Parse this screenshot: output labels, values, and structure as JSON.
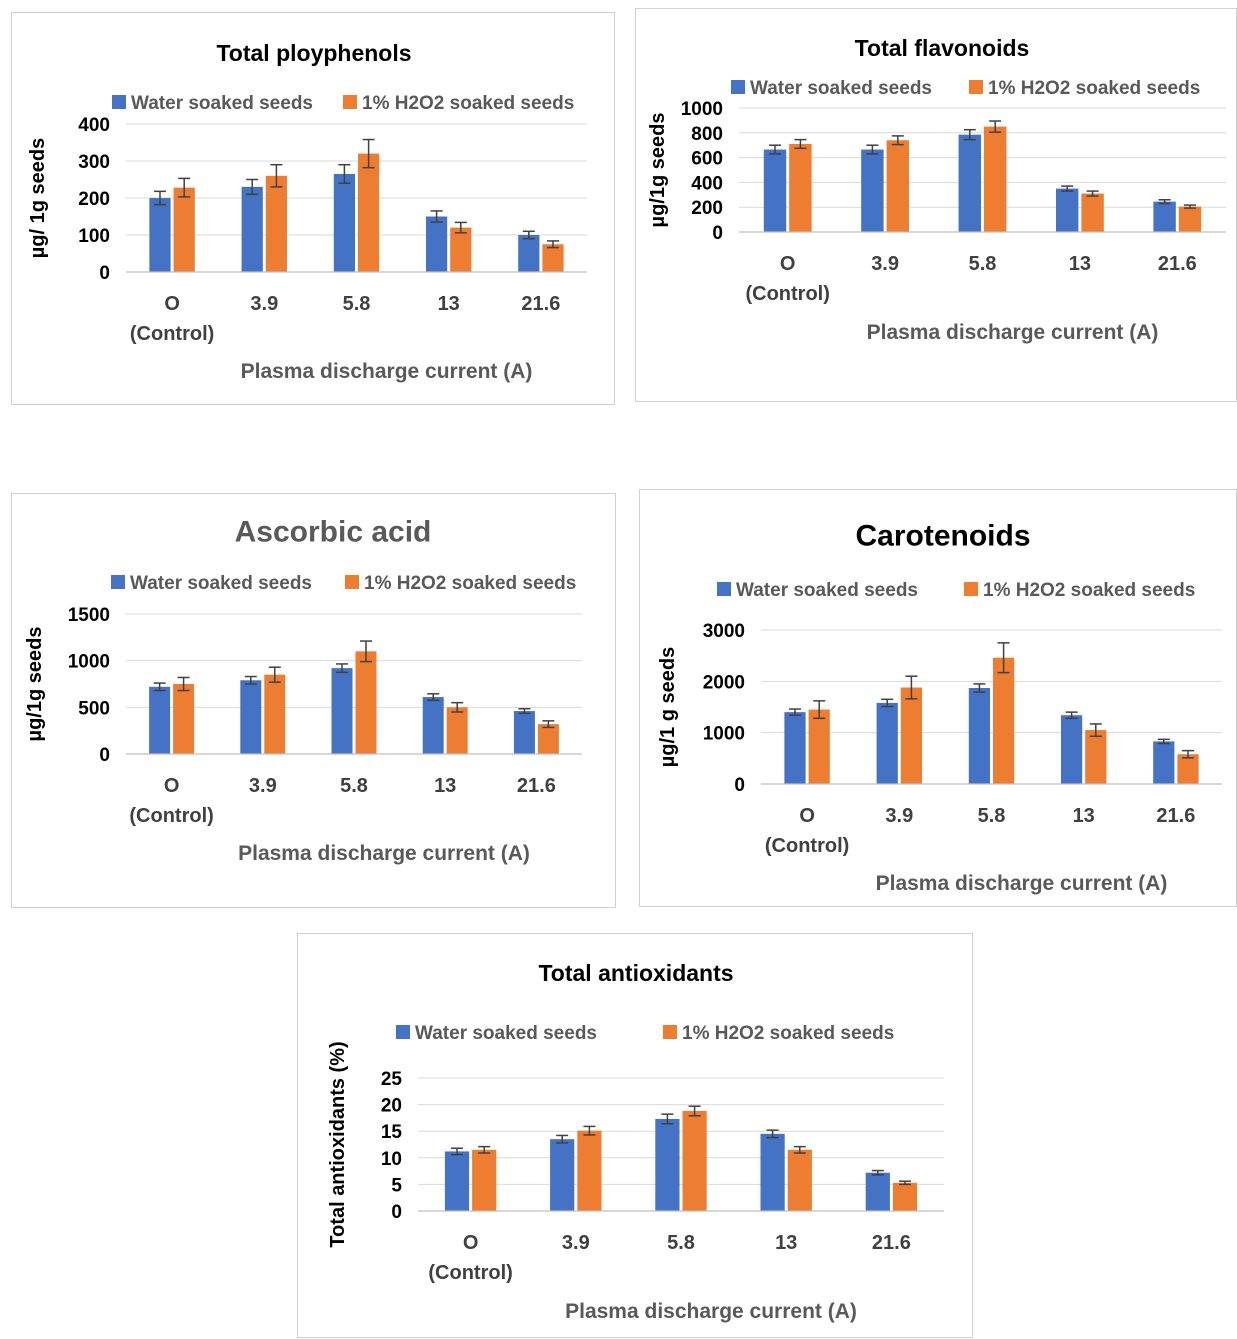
{
  "chart_data": [
    {
      "type": "bar",
      "title": "Total ployphenols",
      "xlabel": "Plasma discharge current (A)",
      "ylabel": "µg/ 1g seeds",
      "categories": [
        "O\n(Control)",
        "3.9",
        "5.8",
        "13",
        "21.6"
      ],
      "series": [
        {
          "name": "Water soaked seeds",
          "color": "#4472C4",
          "values": [
            200,
            230,
            265,
            150,
            100
          ],
          "errors": [
            18,
            20,
            25,
            15,
            10
          ]
        },
        {
          "name": "1% H2O2 soaked seeds",
          "color": "#ED7D31",
          "values": [
            228,
            260,
            320,
            120,
            75
          ],
          "errors": [
            25,
            30,
            38,
            14,
            9
          ]
        }
      ],
      "ylim": [
        0,
        400
      ],
      "yticks": [
        0,
        100,
        200,
        300,
        400
      ],
      "grid": true,
      "legend": "top"
    },
    {
      "type": "bar",
      "title": "Total flavonoids",
      "xlabel": "Plasma  discharge current (A)",
      "ylabel": "µg/1g seeds",
      "categories": [
        "O\n(Control)",
        "3.9",
        "5.8",
        "13",
        "21.6"
      ],
      "series": [
        {
          "name": "Water soaked seeds",
          "color": "#4472C4",
          "values": [
            665,
            665,
            785,
            350,
            245
          ],
          "errors": [
            35,
            35,
            40,
            20,
            15
          ]
        },
        {
          "name": "1% H2O2 soaked seeds",
          "color": "#ED7D31",
          "values": [
            710,
            740,
            850,
            310,
            205
          ],
          "errors": [
            35,
            35,
            45,
            20,
            12
          ]
        }
      ],
      "ylim": [
        0,
        1000
      ],
      "yticks": [
        0,
        200,
        400,
        600,
        800,
        1000
      ],
      "grid": true,
      "legend": "top"
    },
    {
      "type": "bar",
      "title": "Ascorbic acid",
      "xlabel": "Plasma discharge current (A)",
      "ylabel": "µg/1g seeds",
      "categories": [
        "O\n(Control)",
        "3.9",
        "5.8",
        "13",
        "21.6"
      ],
      "series": [
        {
          "name": "Water soaked seeds",
          "color": "#4472C4",
          "values": [
            720,
            790,
            920,
            610,
            460
          ],
          "errors": [
            40,
            40,
            45,
            35,
            25
          ]
        },
        {
          "name": "1% H2O2 soaked seeds",
          "color": "#ED7D31",
          "values": [
            750,
            850,
            1100,
            500,
            320
          ],
          "errors": [
            70,
            80,
            110,
            50,
            35
          ]
        }
      ],
      "ylim": [
        0,
        1500
      ],
      "yticks": [
        0,
        500,
        1000,
        1500
      ],
      "grid": true,
      "legend": "top"
    },
    {
      "type": "bar",
      "title": "Carotenoids",
      "xlabel": "Plasma discharge current (A)",
      "ylabel": "µg/1 g seeds",
      "categories": [
        "O\n(Control)",
        "3.9",
        "5.8",
        "13",
        "21.6"
      ],
      "series": [
        {
          "name": "Water soaked seeds",
          "color": "#4472C4",
          "values": [
            1400,
            1580,
            1870,
            1340,
            830
          ],
          "errors": [
            60,
            70,
            80,
            60,
            40
          ]
        },
        {
          "name": "1% H2O2 soaked seeds",
          "color": "#ED7D31",
          "values": [
            1450,
            1880,
            2460,
            1050,
            580
          ],
          "errors": [
            170,
            220,
            290,
            120,
            70
          ]
        }
      ],
      "ylim": [
        0,
        3000
      ],
      "yticks": [
        0,
        1000,
        2000,
        3000
      ],
      "grid": true,
      "legend": "top"
    },
    {
      "type": "bar",
      "title": "Total antioxidants",
      "xlabel": "Plasma discharge current (A)",
      "ylabel": "Total antioxidants (%)",
      "categories": [
        "O\n(Control)",
        "3.9",
        "5.8",
        "13",
        "21.6"
      ],
      "series": [
        {
          "name": "Water soaked seeds",
          "color": "#4472C4",
          "values": [
            11.2,
            13.5,
            17.3,
            14.5,
            7.2
          ],
          "errors": [
            0.6,
            0.7,
            0.9,
            0.7,
            0.4
          ]
        },
        {
          "name": "1% H2O2 soaked seeds",
          "color": "#ED7D31",
          "values": [
            11.5,
            15.1,
            18.8,
            11.5,
            5.3
          ],
          "errors": [
            0.6,
            0.8,
            0.9,
            0.6,
            0.3
          ]
        }
      ],
      "ylim": [
        0,
        25
      ],
      "yticks": [
        0,
        5,
        10,
        15,
        20,
        25
      ],
      "grid": true,
      "legend": "top"
    }
  ]
}
